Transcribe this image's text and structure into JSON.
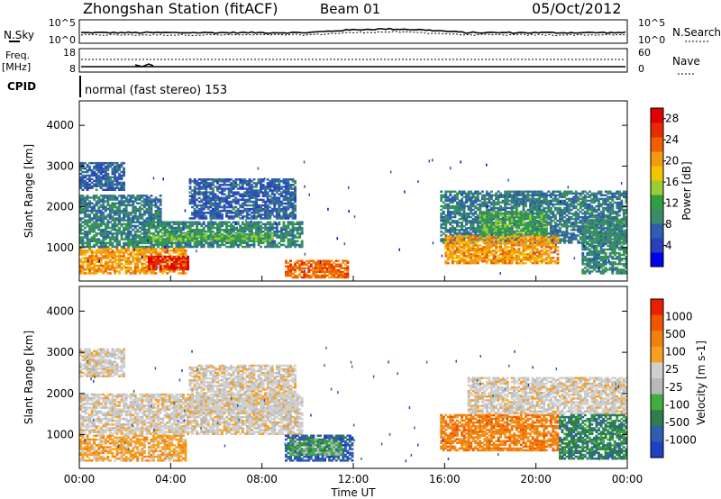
{
  "header": {
    "station": "Zhongshan Station (fitACF)",
    "beam": "Beam 01",
    "date": "05/Oct/2012"
  },
  "sky_panel": {
    "left_label": "N.Sky",
    "right_label": "N.Search",
    "left_ticks": [
      "10^5",
      "10^0"
    ],
    "right_ticks": [
      "10^5",
      "10^0"
    ]
  },
  "freq_panel": {
    "left_label": "Freq.",
    "left_unit": "[MHz]",
    "right_label": "Nave",
    "left_ticks": [
      "18",
      "8"
    ],
    "right_ticks": [
      "60",
      "0"
    ]
  },
  "cpid_panel": {
    "label": "CPID",
    "mode": "normal (fast stereo) 153"
  },
  "colors": {
    "power": [
      "#0000ee",
      "#2b3fb8",
      "#2f5db0",
      "#3b8a6a",
      "#2ea043",
      "#9bcc32",
      "#f2c500",
      "#f39c12",
      "#f06000",
      "#e62b00",
      "#e00000"
    ],
    "velocity": [
      "#1f3fc4",
      "#2f5db0",
      "#2e7d4a",
      "#3fae3f",
      "#b9b9b9",
      "#cfcfcf",
      "#f7a020",
      "#f08010",
      "#f05500",
      "#e62000"
    ]
  },
  "chart_data": [
    {
      "type": "heatmap",
      "name": "power",
      "ylabel": "Slant Range [km]",
      "yticks": [
        1000,
        2000,
        3000,
        4000
      ],
      "ylim": [
        180,
        4600
      ],
      "xlim": [
        0,
        24
      ],
      "colorbar": {
        "label": "Power [dB]",
        "ticks": [
          4,
          8,
          12,
          16,
          20,
          24,
          28
        ],
        "range": [
          0,
          30
        ]
      },
      "regions": [
        {
          "t0": 0.0,
          "t1": 4.7,
          "r0": 350,
          "r1": 1000,
          "v": 21
        },
        {
          "t0": 3.0,
          "t1": 4.8,
          "r0": 450,
          "r1": 800,
          "v": 28
        },
        {
          "t0": 0.0,
          "t1": 9.8,
          "r0": 1000,
          "r1": 1650,
          "v": 9
        },
        {
          "t0": 3.0,
          "t1": 8.5,
          "r0": 1150,
          "r1": 1350,
          "v": 13
        },
        {
          "t0": 0.0,
          "t1": 3.6,
          "r0": 1650,
          "r1": 2300,
          "v": 8
        },
        {
          "t0": 0.0,
          "t1": 2.0,
          "r0": 2400,
          "r1": 3100,
          "v": 6
        },
        {
          "t0": 4.8,
          "t1": 9.5,
          "r0": 1700,
          "r1": 2700,
          "v": 6
        },
        {
          "t0": 9.0,
          "t1": 11.8,
          "r0": 250,
          "r1": 700,
          "v": 24
        },
        {
          "t0": 15.8,
          "t1": 24.0,
          "r0": 1100,
          "r1": 2400,
          "v": 8
        },
        {
          "t0": 16.0,
          "t1": 21.0,
          "r0": 600,
          "r1": 1300,
          "v": 21
        },
        {
          "t0": 17.5,
          "t1": 20.5,
          "r0": 1300,
          "r1": 1900,
          "v": 12
        },
        {
          "t0": 22.0,
          "t1": 24.0,
          "r0": 350,
          "r1": 1700,
          "v": 9
        }
      ]
    },
    {
      "type": "heatmap",
      "name": "velocity",
      "ylabel": "Slant Range [km]",
      "yticks": [
        1000,
        2000,
        3000,
        4000
      ],
      "ylim": [
        180,
        4600
      ],
      "xlim": [
        0,
        24
      ],
      "xticks": [
        "00:00",
        "04:00",
        "08:00",
        "12:00",
        "16:00",
        "20:00",
        "00:00"
      ],
      "xlabel": "Time UT",
      "colorbar": {
        "label": "Velocity [m s-1]",
        "ticks": [
          "1000",
          "500",
          "100",
          "25",
          "-25",
          "-100",
          "-500",
          "-1000"
        ]
      },
      "regions": [
        {
          "t0": 0.0,
          "t1": 4.7,
          "r0": 350,
          "r1": 1000,
          "v": 6
        },
        {
          "t0": 0.0,
          "t1": 9.8,
          "r0": 1000,
          "r1": 2000,
          "v": 5
        },
        {
          "t0": 0.0,
          "t1": 2.0,
          "r0": 2400,
          "r1": 3100,
          "v": 5
        },
        {
          "t0": 4.8,
          "t1": 9.5,
          "r0": 1500,
          "r1": 2700,
          "v": 5
        },
        {
          "t0": 9.0,
          "t1": 12.0,
          "r0": 350,
          "r1": 1000,
          "v": 1
        },
        {
          "t0": 9.2,
          "t1": 11.5,
          "r0": 500,
          "r1": 900,
          "v": 3
        },
        {
          "t0": 15.8,
          "t1": 21.0,
          "r0": 600,
          "r1": 1500,
          "v": 7
        },
        {
          "t0": 17.0,
          "t1": 24.0,
          "r0": 1500,
          "r1": 2400,
          "v": 5
        },
        {
          "t0": 21.0,
          "t1": 24.0,
          "r0": 400,
          "r1": 1500,
          "v": 2
        }
      ]
    }
  ]
}
